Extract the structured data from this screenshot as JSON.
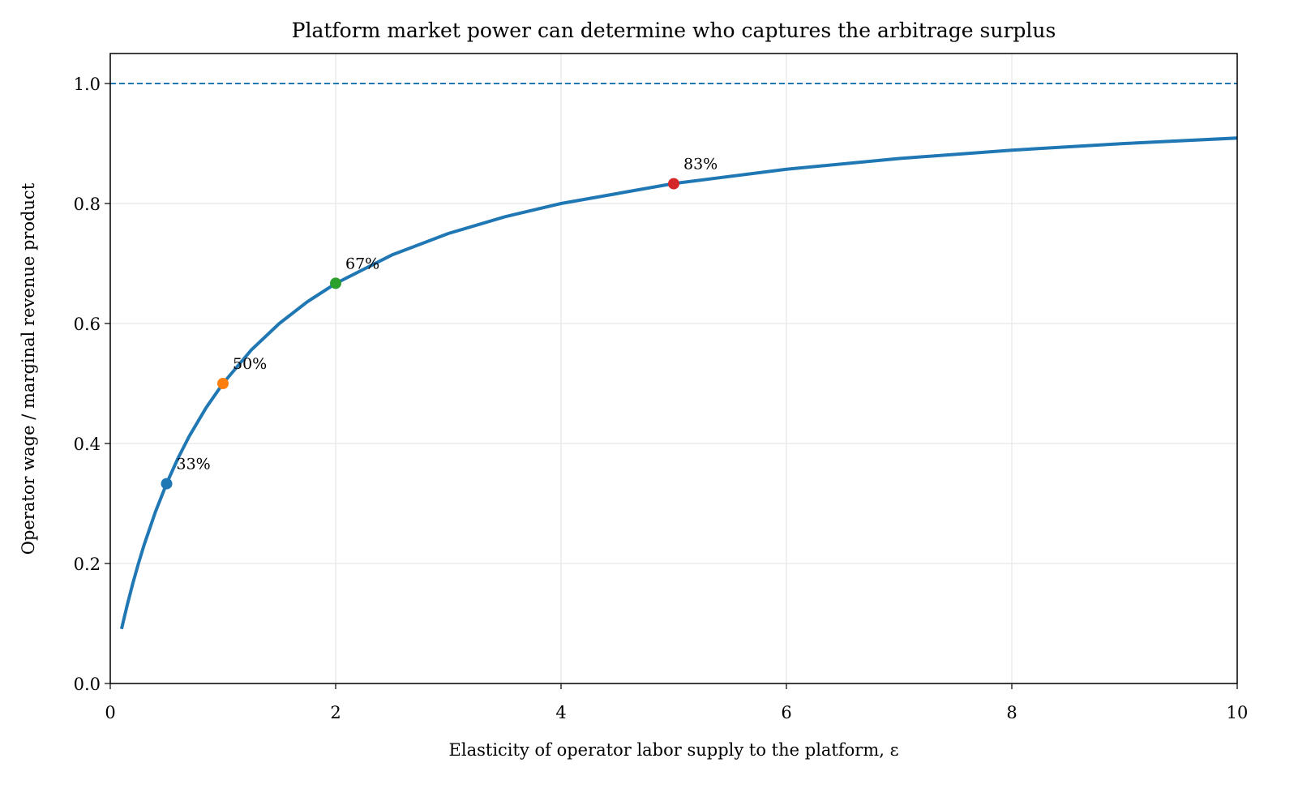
{
  "chart_data": {
    "type": "line",
    "title": "Platform market power can determine who captures the arbitrage surplus",
    "x_label": "Elasticity of operator labor supply to the platform, ε",
    "y_label": "Operator wage / marginal revenue product",
    "xlim": [
      0,
      10
    ],
    "ylim": [
      0,
      1.05
    ],
    "xticks": [
      0,
      2,
      4,
      6,
      8,
      10
    ],
    "yticks": [
      {
        "value": 0,
        "label": "0.0"
      },
      {
        "value": 0.2,
        "label": "0.2"
      },
      {
        "value": 0.4,
        "label": "0.4"
      },
      {
        "value": 0.6,
        "label": "0.6"
      },
      {
        "value": 0.8,
        "label": "0.8"
      },
      {
        "value": 1.0,
        "label": "1.0"
      }
    ],
    "grid": true,
    "hlines": [
      {
        "value": 1.0,
        "color": "#1f77b4",
        "dashed": true
      }
    ],
    "series": [
      {
        "type": "line",
        "color": "#1f77b4",
        "x": [
          0.1,
          0.15,
          0.2,
          0.25,
          0.3,
          0.4,
          0.5,
          0.6,
          0.7,
          0.85,
          1,
          1.25,
          1.5,
          1.75,
          2,
          2.5,
          3,
          3.5,
          4,
          5,
          6,
          7,
          8,
          9,
          10
        ],
        "values": [
          0.0909,
          0.1304,
          0.1667,
          0.2,
          0.2308,
          0.2857,
          0.3333,
          0.375,
          0.4118,
          0.4595,
          0.5,
          0.5556,
          0.6,
          0.6364,
          0.6667,
          0.7143,
          0.75,
          0.7778,
          0.8,
          0.8333,
          0.8571,
          0.875,
          0.8889,
          0.9,
          0.9091
        ]
      },
      {
        "type": "scatter",
        "color": "#1f77b4",
        "x": [
          0.5
        ],
        "values": [
          0.333
        ],
        "value_labels": [
          "33%"
        ]
      },
      {
        "type": "scatter",
        "color": "#ff7f0e",
        "x": [
          1
        ],
        "values": [
          0.5
        ],
        "value_labels": [
          "50%"
        ]
      },
      {
        "type": "scatter",
        "color": "#2ca02c",
        "x": [
          2
        ],
        "values": [
          0.667
        ],
        "value_labels": [
          "67%"
        ]
      },
      {
        "type": "scatter",
        "color": "#d62728",
        "x": [
          5
        ],
        "values": [
          0.833
        ],
        "value_labels": [
          "83%"
        ]
      }
    ]
  }
}
